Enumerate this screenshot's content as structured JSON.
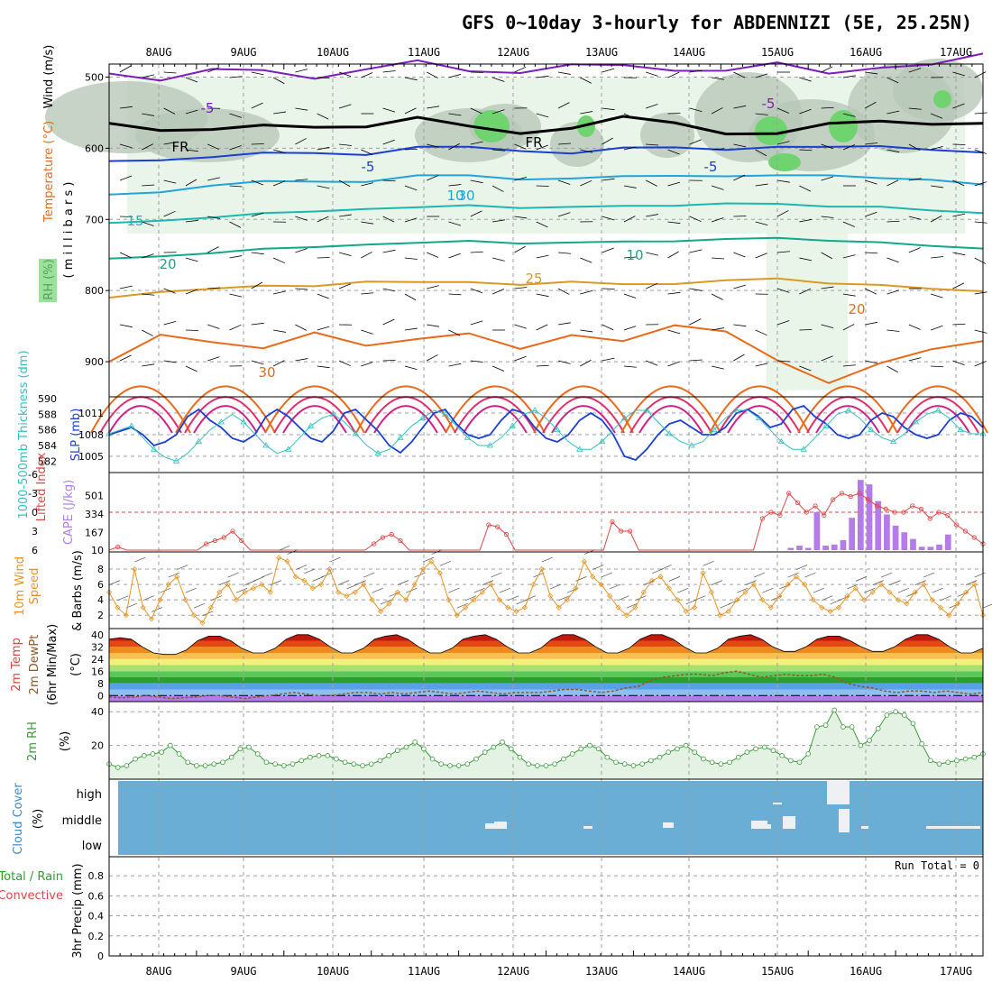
{
  "title": "GFS 0~10day 3-hourly for ABDENNIZI (5E, 25.25N)",
  "dates": [
    "8AUG",
    "9AUG",
    "10AUG",
    "11AUG",
    "12AUG",
    "13AUG",
    "14AUG",
    "15AUG",
    "16AUG",
    "17AUG"
  ],
  "colors": {
    "frame": "#000000",
    "grid": "#a0a0a0",
    "rh_fill_low": "#e8f4e8",
    "rh_fill_mid": "#b8c8b8",
    "rh_fill_high": "#6fd46f",
    "slp": "#1a3fd1",
    "thickness": "#33c0c0",
    "lifted_index": "#e04545",
    "cape": "#b57be8",
    "wind10m": "#e89425",
    "rh2m": "#3a9a3a",
    "cloud_bg": "#6aaed6",
    "dewpoint": "#8b5a2b"
  },
  "chart_data": [
    {
      "type": "contour",
      "panel": "upper-air",
      "ylabel_parts": [
        "RH (%)",
        "Temperature (°C)",
        "Wind (m/s)"
      ],
      "ylabel_units": "( m i l l i b a r s )",
      "yticks": [
        500,
        600,
        700,
        800,
        900
      ],
      "ylim": [
        1000,
        450
      ],
      "temperature_contours": [
        {
          "label": "-5",
          "color": "#7a1fb8",
          "level_mb": [
            495,
            500,
            490,
            495,
            500,
            485,
            480,
            495,
            490,
            480,
            488,
            492,
            486,
            480,
            500,
            485,
            478,
            470
          ]
        },
        {
          "label": "FR",
          "color": "#000000",
          "level_mb": [
            565,
            570,
            575,
            572,
            568,
            566,
            560,
            572,
            575,
            570,
            560,
            565,
            575,
            580,
            570,
            560,
            562,
            568
          ]
        },
        {
          "label": "-5",
          "color": "#1a3fd1",
          "level_mb": [
            618,
            615,
            610,
            605,
            608,
            612,
            600,
            598,
            602,
            605,
            598,
            600,
            605,
            600,
            598,
            595,
            600,
            605
          ]
        },
        {
          "label": "10",
          "color": "#22a4d8",
          "level_mb": [
            665,
            660,
            650,
            645,
            648,
            650,
            640,
            638,
            642,
            640,
            638,
            640,
            642,
            640,
            638,
            640,
            642,
            650
          ]
        },
        {
          "label": "15",
          "color": "#1cb8b0",
          "level_mb": [
            705,
            700,
            695,
            690,
            690,
            688,
            685,
            680,
            682,
            680,
            680,
            682,
            680,
            680,
            682,
            680,
            685,
            690
          ]
        },
        {
          "label": "20",
          "color": "#12a888",
          "level_mb": [
            755,
            750,
            745,
            740,
            740,
            738,
            735,
            730,
            732,
            730,
            730,
            732,
            730,
            728,
            730,
            730,
            735,
            740
          ]
        },
        {
          "label": "25",
          "color": "#d89a22",
          "level_mb": [
            810,
            800,
            795,
            792,
            795,
            790,
            790,
            788,
            790,
            785,
            790,
            792,
            788,
            785,
            790,
            790,
            795,
            800
          ]
        },
        {
          "label": "30",
          "color": "#e86a1a",
          "level_mb": [
            900,
            860,
            870,
            880,
            860,
            880,
            870,
            860,
            880,
            860,
            870,
            850,
            860,
            900,
            930,
            900,
            880,
            870
          ]
        }
      ],
      "contour_labels": [
        "-5",
        "FR",
        "-5",
        "10",
        "15",
        "20",
        "25",
        "30",
        "-5",
        "FR",
        "-5",
        "10",
        "20",
        "30"
      ]
    },
    {
      "type": "line",
      "panel": "slp-thickness",
      "ylabel_left": "1000-500mb Thickness (dm)",
      "ylabel_right": "SLP (mb)",
      "thickness_ticks": [
        582,
        584,
        586,
        588,
        590
      ],
      "slp_ticks": [
        1005,
        1008,
        1011
      ],
      "series": [
        {
          "name": "SLP",
          "values": [
            1008,
            1008.5,
            1009,
            1008,
            1006.5,
            1007,
            1008,
            1010.5,
            1011.5,
            1010,
            1009,
            1007.5,
            1007,
            1008,
            1010.5,
            1011.5,
            1010.5,
            1009,
            1007.5,
            1007,
            1008.5,
            1011,
            1011.5,
            1010,
            1008.5,
            1006.5,
            1005.5,
            1007,
            1009,
            1011,
            1011.5,
            1009.5,
            1008,
            1007.5,
            1008,
            1010,
            1011.5,
            1011,
            1009,
            1007.5,
            1007,
            1008,
            1010,
            1011,
            1010,
            1008,
            1005,
            1004.5,
            1006,
            1008,
            1009.5,
            1010,
            1009,
            1008,
            1008,
            1009,
            1011,
            1011.5,
            1010.5,
            1009,
            1009.5,
            1011.5,
            1012,
            1010.5,
            1009.5,
            1008,
            1007.5,
            1008,
            1010,
            1011,
            1010.5,
            1009,
            1008,
            1007.5,
            1008,
            1010,
            1011,
            1010.5,
            1009
          ]
        },
        {
          "name": "Thickness",
          "values": [
            585.5,
            586,
            586.5,
            585,
            583.5,
            582.5,
            582,
            583,
            584.5,
            586,
            587,
            588,
            587,
            585.5,
            584,
            583,
            583.5,
            585,
            586.5,
            587.5,
            588,
            587,
            585.5,
            584,
            583,
            583.5,
            585,
            586.5,
            587.5,
            588.5,
            588,
            586.5,
            585,
            584,
            584,
            585,
            586.5,
            588,
            588.5,
            587.5,
            586,
            584.5,
            583.5,
            583.5,
            584.5,
            586,
            587.5,
            588.5,
            588.5,
            587,
            585.5,
            584.5,
            584,
            584.5,
            586,
            587.5,
            588.5,
            588.5,
            587.5,
            586,
            584.5,
            583.5,
            583.5,
            585,
            586.5,
            588,
            588.5,
            587.5,
            586,
            585,
            584.5,
            585.5,
            587,
            588,
            588.5,
            587.5,
            586,
            585.5,
            585.5
          ]
        }
      ]
    },
    {
      "type": "bar",
      "panel": "li-cape",
      "ylabel_left": "Lifted Index",
      "ylabel_right": "CAPE (J/kg)",
      "li_ticks": [
        -6,
        -3,
        0,
        3,
        6
      ],
      "cape_ticks": [
        10,
        167,
        334,
        501
      ],
      "series": [
        {
          "name": "Lifted Index",
          "values": [
            6,
            5.5,
            6,
            6,
            6,
            6,
            6,
            6,
            6,
            6,
            6,
            5,
            4.5,
            4,
            3,
            4.5,
            6,
            6,
            6,
            6,
            6,
            6,
            6,
            6,
            6,
            6,
            6,
            6,
            6,
            6,
            5,
            4,
            3.5,
            4.5,
            6,
            6,
            6,
            6,
            6,
            6,
            6,
            6,
            6,
            2,
            2.3,
            3.5,
            6,
            6,
            6,
            6,
            6,
            6,
            6,
            6,
            6,
            6,
            6,
            1.5,
            3,
            3,
            6,
            6,
            6,
            6,
            6,
            6,
            6,
            6,
            6,
            6,
            6,
            6,
            6,
            6,
            1,
            0,
            0.5,
            -3,
            -1.5,
            0,
            -1,
            0.5,
            -2,
            -3,
            -2.5,
            -3,
            -2,
            -1,
            -0.5,
            0,
            0,
            -1,
            -0.5,
            1,
            0,
            0.5,
            2,
            3,
            4,
            5
          ]
        },
        {
          "name": "CAPE",
          "values": [
            0,
            0,
            0,
            0,
            0,
            0,
            0,
            0,
            0,
            0,
            0,
            0,
            0,
            0,
            0,
            0,
            0,
            0,
            0,
            0,
            0,
            0,
            0,
            0,
            0,
            0,
            0,
            0,
            0,
            0,
            0,
            0,
            0,
            0,
            0,
            0,
            0,
            0,
            0,
            0,
            0,
            0,
            0,
            0,
            0,
            0,
            0,
            0,
            0,
            0,
            0,
            0,
            0,
            0,
            0,
            0,
            0,
            0,
            0,
            0,
            0,
            0,
            0,
            0,
            0,
            0,
            0,
            0,
            0,
            0,
            0,
            0,
            0,
            0,
            0,
            0,
            0,
            0,
            30,
            50,
            30,
            350,
            50,
            60,
            100,
            300,
            640,
            600,
            450,
            330,
            230,
            170,
            110,
            40,
            40,
            60,
            150,
            0,
            0,
            0,
            0
          ]
        }
      ]
    },
    {
      "type": "line",
      "panel": "wind10m",
      "ylabel": "10m Wind Speed & Barbs (m/s)",
      "yticks": [
        2,
        4,
        6,
        8
      ],
      "series": [
        {
          "name": "10m Wind Speed",
          "values": [
            5,
            3,
            2,
            8,
            3,
            1.5,
            4,
            6,
            7,
            4,
            2,
            1,
            3,
            5,
            6,
            4,
            5,
            5.5,
            6,
            5,
            9.5,
            9,
            7,
            6.5,
            5.5,
            6,
            8,
            5,
            4.5,
            5,
            6,
            4,
            2.5,
            3.5,
            5,
            4,
            6,
            8,
            9,
            7.5,
            4,
            2,
            3,
            4,
            5,
            6,
            4,
            3,
            2.5,
            3,
            6,
            8,
            4.5,
            3,
            4,
            5.5,
            9,
            7,
            6,
            4.5,
            3,
            2,
            3,
            5,
            6.5,
            7,
            5.5,
            4,
            2.5,
            3,
            7.5,
            5,
            2,
            2.5,
            4,
            5,
            6,
            4,
            3,
            4.5,
            6,
            7,
            6,
            4,
            3,
            2.5,
            3,
            4.5,
            5.5,
            4,
            5,
            6,
            5,
            4,
            3.5,
            5,
            6,
            4,
            3,
            2,
            3.5,
            5,
            6,
            2
          ]
        }
      ]
    },
    {
      "type": "area",
      "panel": "t2m",
      "ylabel": "2m Temp 2m DewPt (6hr Min/Max) (°C)",
      "yticks": [
        0,
        8,
        16,
        24,
        32,
        40
      ],
      "series": [
        {
          "name": "2m Temp",
          "values": [
            37,
            38,
            37,
            32,
            28,
            27,
            27,
            30,
            36,
            39,
            39,
            36,
            31,
            28,
            28,
            31,
            37,
            40,
            40,
            37,
            32,
            28,
            28,
            31,
            37,
            39,
            40,
            37,
            32,
            28,
            28,
            31,
            37,
            39,
            40,
            37,
            32,
            28,
            28,
            31,
            37,
            40,
            40,
            37,
            32,
            28,
            28,
            31,
            37,
            40,
            40,
            37,
            32,
            28,
            28,
            31,
            37,
            39,
            40,
            37,
            32,
            29,
            29,
            32,
            37,
            39,
            39,
            36,
            32,
            29,
            29,
            32,
            37,
            40,
            40,
            37,
            32,
            28,
            28,
            31
          ]
        },
        {
          "name": "2m DewPt",
          "values": [
            -1,
            -1.5,
            -1,
            0,
            -1,
            -2,
            -1.5,
            -1,
            0,
            0,
            -1,
            -2,
            -1,
            0,
            1,
            2,
            1,
            0,
            0,
            1,
            2,
            2,
            1,
            2,
            1,
            2,
            3,
            2,
            1,
            2,
            3,
            2,
            1,
            2,
            2,
            2,
            3,
            4,
            4,
            3,
            2,
            3,
            5,
            6,
            10,
            12,
            13,
            14,
            14,
            13,
            15,
            16,
            14,
            12,
            13,
            14,
            13,
            13,
            14,
            12,
            8,
            6,
            5,
            3,
            2,
            3,
            3,
            2,
            3,
            2,
            1,
            2
          ]
        }
      ]
    },
    {
      "type": "area",
      "panel": "rh2m",
      "ylabel": "2m RH (%)",
      "yticks": [
        20,
        40
      ],
      "series": [
        {
          "name": "2m RH",
          "values": [
            9,
            7,
            8,
            12,
            14,
            15,
            16,
            20,
            15,
            10,
            8,
            8,
            9,
            10,
            13,
            18,
            19,
            15,
            10,
            9,
            8,
            9,
            11,
            13,
            14,
            14,
            12,
            10,
            9,
            8,
            9,
            11,
            14,
            17,
            19,
            22,
            18,
            12,
            9,
            8,
            8,
            9,
            12,
            16,
            19,
            22,
            18,
            13,
            9,
            8,
            8,
            9,
            12,
            15,
            18,
            20,
            18,
            13,
            10,
            9,
            8,
            9,
            11,
            13,
            16,
            18,
            20,
            16,
            12,
            10,
            9,
            10,
            13,
            16,
            18,
            19,
            17,
            14,
            11,
            10,
            15,
            31,
            32,
            41,
            31,
            31,
            20,
            23,
            30,
            38,
            40,
            38,
            33,
            21,
            11,
            9,
            10,
            11,
            12,
            13,
            15
          ]
        }
      ]
    },
    {
      "type": "bar",
      "panel": "cloud",
      "ylabel": "Cloud Cover (%)",
      "ytick_labels": [
        "high",
        "middle",
        "low"
      ]
    },
    {
      "type": "bar",
      "panel": "precip",
      "ylabel_legend_1": "Total / Rain",
      "ylabel_legend_2": "Convective",
      "ylabel": "3hr Precip (mm)",
      "yticks": [
        "0",
        "0.2",
        "0.4",
        "0.6",
        "0.8"
      ],
      "run_total_label": "Run Total = 0"
    }
  ]
}
